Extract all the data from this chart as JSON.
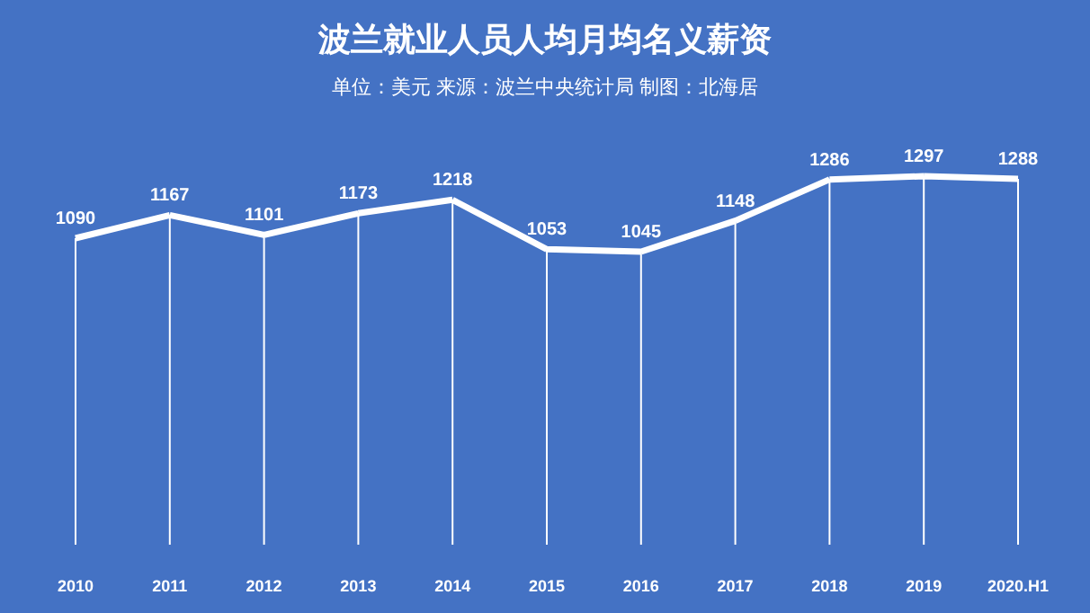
{
  "chart_data": {
    "type": "line",
    "title": "波兰就业人员人均月均名义薪资",
    "subtitle": "单位：美元  来源：波兰中央统计局   制图：北海居",
    "categories": [
      "2010",
      "2011",
      "2012",
      "2013",
      "2014",
      "2015",
      "2016",
      "2017",
      "2018",
      "2019",
      "2020.H1"
    ],
    "series": [
      {
        "type": "line",
        "color": "#ffffff",
        "values": [
          1090,
          1167,
          1101,
          1173,
          1218,
          1053,
          1045,
          1148,
          1286,
          1297,
          1288
        ]
      }
    ],
    "data_labels": true,
    "grid": "x"
  }
}
